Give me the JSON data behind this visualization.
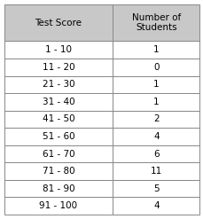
{
  "col1_header": "Test Score",
  "col2_header": "Number of\nStudents",
  "rows": [
    [
      "1 - 10",
      "1"
    ],
    [
      "11 - 20",
      "0"
    ],
    [
      "21 - 30",
      "1"
    ],
    [
      "31 - 40",
      "1"
    ],
    [
      "41 - 50",
      "2"
    ],
    [
      "51 - 60",
      "4"
    ],
    [
      "61 - 70",
      "6"
    ],
    [
      "71 - 80",
      "11"
    ],
    [
      "81 - 90",
      "5"
    ],
    [
      "91 - 100",
      "4"
    ]
  ],
  "header_bg": "#c8c8c8",
  "row_bg": "#ffffff",
  "border_color": "#888888",
  "text_color": "#000000",
  "header_fontsize": 7.5,
  "row_fontsize": 7.5,
  "fig_width": 2.3,
  "fig_height": 2.47,
  "dpi": 100
}
